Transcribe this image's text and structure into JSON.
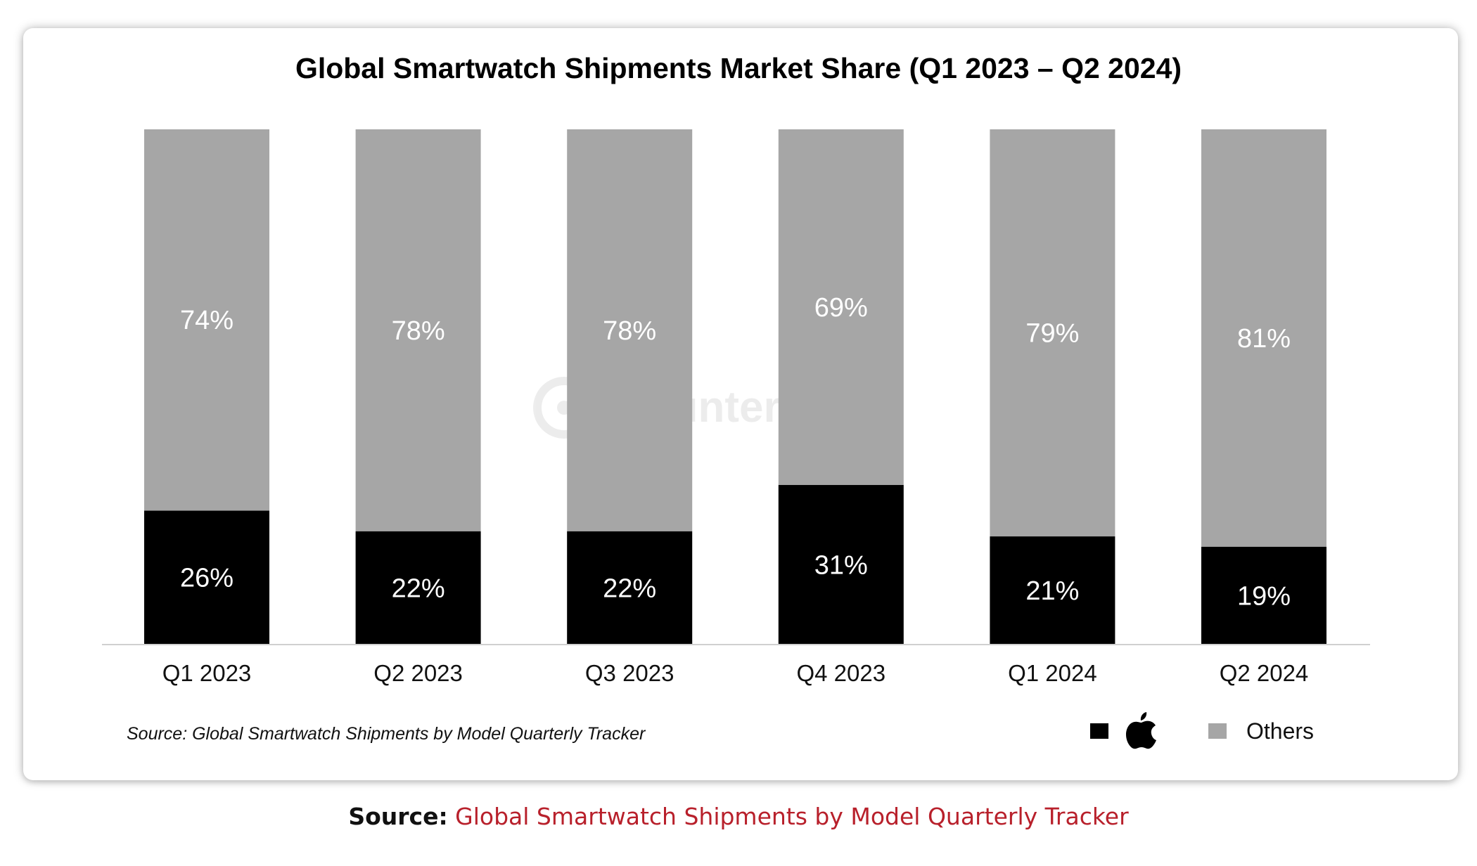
{
  "footer": {
    "source_label": "Source:",
    "source_link": "Global Smartwatch Shipments by Model Quarterly Tracker"
  },
  "colors": {
    "apple": "#000000",
    "others": "#a6a6a6",
    "link": "#b8202b"
  },
  "chart_data": {
    "type": "bar",
    "stacked": true,
    "title": "Global Smartwatch Shipments Market Share (Q1 2023 – Q2 2024)",
    "source_note": "Source: Global Smartwatch Shipments by Model Quarterly Tracker",
    "watermark": "Counterpoint",
    "categories": [
      "Q1 2023",
      "Q2 2023",
      "Q3 2023",
      "Q4 2023",
      "Q1 2024",
      "Q2 2024"
    ],
    "series": [
      {
        "name": "Apple",
        "legend_icon": "apple-logo-icon",
        "color": "#000000",
        "values": [
          26,
          22,
          22,
          31,
          21,
          19
        ],
        "labels": [
          "26%",
          "22%",
          "22%",
          "31%",
          "21%",
          "19%"
        ]
      },
      {
        "name": "Others",
        "color": "#a6a6a6",
        "values": [
          74,
          78,
          78,
          69,
          79,
          81
        ],
        "labels": [
          "74%",
          "78%",
          "78%",
          "69%",
          "79%",
          "81%"
        ]
      }
    ],
    "ylim": [
      0,
      100
    ],
    "grid": false,
    "legend": "bottom-right"
  }
}
